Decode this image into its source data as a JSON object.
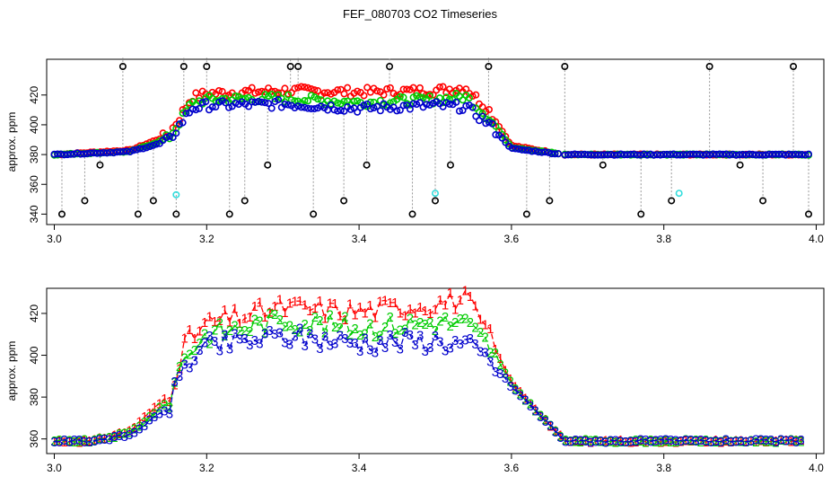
{
  "title": "FEF_080703  CO2 Timeseries",
  "colors": {
    "s1": "#ff0000",
    "s2": "#00cc00",
    "s3": "#0000cc",
    "outlier": "#000000",
    "flag": "#33dddd",
    "drop": "#999999"
  },
  "chart_data": [
    {
      "type": "scatter",
      "ylabel": "approx. ppm",
      "xlim": [
        2.99,
        4.01
      ],
      "ylim": [
        333,
        444
      ],
      "xticks": [
        "3.0",
        "3.2",
        "3.4",
        "3.6",
        "3.8",
        "4.0"
      ],
      "yticks": [
        "340",
        "360",
        "380",
        "400",
        "420"
      ],
      "grid": false,
      "series": [
        {
          "marker": "circle",
          "color": "red",
          "x": [
            3.0,
            3.1,
            3.15,
            3.18,
            3.2,
            3.3,
            3.4,
            3.5,
            3.54,
            3.57,
            3.6,
            3.67,
            3.8,
            3.98
          ],
          "values": [
            380,
            383,
            393,
            418,
            421,
            423,
            422,
            423,
            425,
            410,
            386,
            380,
            380,
            380
          ]
        },
        {
          "marker": "circle",
          "color": "green",
          "x": [
            3.0,
            3.1,
            3.15,
            3.18,
            3.2,
            3.3,
            3.4,
            3.5,
            3.54,
            3.57,
            3.6,
            3.67,
            3.8,
            3.98
          ],
          "values": [
            380,
            382,
            391,
            414,
            417,
            418,
            415,
            417,
            419,
            405,
            385,
            380,
            380,
            380
          ]
        },
        {
          "marker": "circle",
          "color": "blue",
          "x": [
            3.0,
            3.1,
            3.15,
            3.18,
            3.2,
            3.3,
            3.4,
            3.5,
            3.54,
            3.57,
            3.6,
            3.67,
            3.8,
            3.98
          ],
          "values": [
            380,
            382,
            389,
            411,
            413,
            414,
            411,
            413,
            412,
            401,
            384,
            380,
            380,
            380
          ]
        }
      ],
      "outliers_black": {
        "x": [
          3.01,
          3.04,
          3.06,
          3.09,
          3.11,
          3.13,
          3.16,
          3.17,
          3.2,
          3.23,
          3.25,
          3.28,
          3.31,
          3.32,
          3.34,
          3.38,
          3.41,
          3.44,
          3.47,
          3.5,
          3.52,
          3.57,
          3.62,
          3.65,
          3.67,
          3.72,
          3.77,
          3.81,
          3.86,
          3.9,
          3.93,
          3.97,
          3.99
        ],
        "values": [
          340,
          349,
          373,
          445,
          340,
          349,
          340,
          445,
          445,
          340,
          349,
          373,
          445,
          445,
          340,
          349,
          373,
          445,
          340,
          349,
          373,
          445,
          340,
          349,
          445,
          373,
          340,
          349,
          445,
          373,
          349,
          445,
          340
        ]
      },
      "flagged_cyan": {
        "x": [
          3.16,
          3.5,
          3.82
        ],
        "values": [
          353,
          354,
          354
        ]
      }
    },
    {
      "type": "line",
      "ylabel": "approx. ppm",
      "xlim": [
        2.99,
        4.01
      ],
      "ylim": [
        353,
        432
      ],
      "xticks": [
        "3.0",
        "3.2",
        "3.4",
        "3.6",
        "3.8",
        "4.0"
      ],
      "yticks": [
        "360",
        "380",
        "400",
        "420"
      ],
      "grid": false,
      "series": [
        {
          "marker": "1",
          "color": "red",
          "x": [
            3.0,
            3.05,
            3.1,
            3.15,
            3.17,
            3.2,
            3.3,
            3.4,
            3.5,
            3.54,
            3.57,
            3.6,
            3.67,
            3.8,
            3.98
          ],
          "values": [
            359,
            359,
            364,
            381,
            405,
            415,
            423,
            421,
            425,
            427,
            410,
            387,
            359,
            359,
            359
          ]
        },
        {
          "marker": "2",
          "color": "green",
          "x": [
            3.0,
            3.05,
            3.1,
            3.15,
            3.17,
            3.2,
            3.3,
            3.4,
            3.5,
            3.54,
            3.57,
            3.6,
            3.67,
            3.8,
            3.98
          ],
          "values": [
            359,
            359,
            363,
            378,
            400,
            410,
            417,
            413,
            416,
            415,
            405,
            386,
            359,
            359,
            359
          ]
        },
        {
          "marker": "3",
          "color": "blue",
          "x": [
            3.0,
            3.05,
            3.1,
            3.15,
            3.17,
            3.2,
            3.3,
            3.4,
            3.5,
            3.54,
            3.57,
            3.6,
            3.67,
            3.8,
            3.98
          ],
          "values": [
            359,
            359,
            362,
            375,
            395,
            404,
            409,
            406,
            407,
            405,
            398,
            385,
            359,
            359,
            359
          ]
        }
      ]
    }
  ]
}
